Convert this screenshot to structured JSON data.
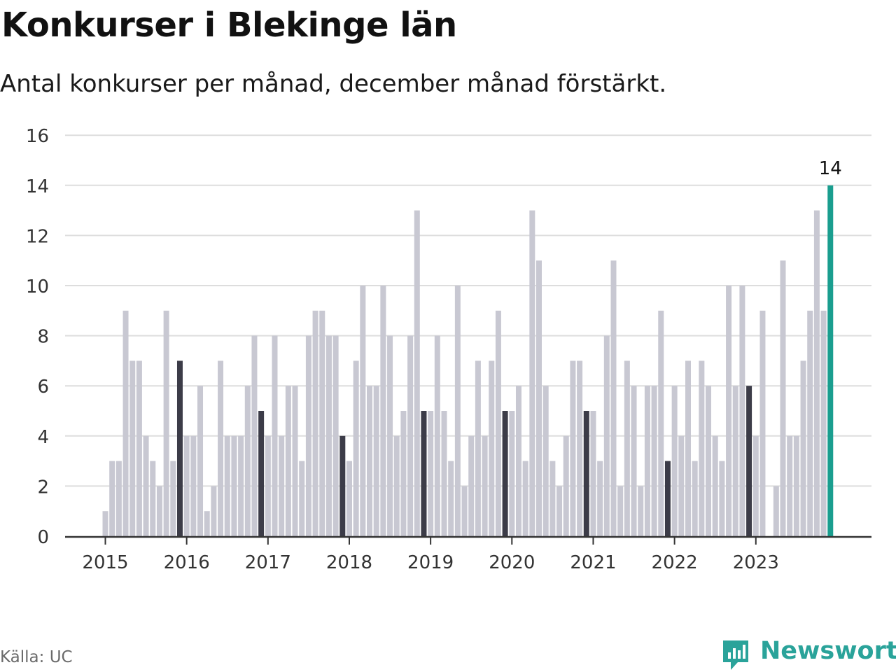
{
  "title": "Konkurser i Blekinge län",
  "subtitle": "Antal konkurser per månad, december månad förstärkt.",
  "source": "Källa: UC",
  "brand": "Newsworthy",
  "colors": {
    "bar": "#c8c8d2",
    "december": "#3c3c48",
    "latest": "#1a9e8f",
    "grid": "#dddddd",
    "axis": "#333333",
    "brand": "#2aa39a"
  },
  "chart_data": {
    "type": "bar",
    "title": "Konkurser i Blekinge län",
    "subtitle": "Antal konkurser per månad, december månad förstärkt.",
    "xlabel": "",
    "ylabel": "",
    "ylim": [
      0,
      16
    ],
    "yticks": [
      0,
      2,
      4,
      6,
      8,
      10,
      12,
      14,
      16
    ],
    "year_ticks": [
      "2015",
      "2016",
      "2017",
      "2018",
      "2019",
      "2020",
      "2021",
      "2022",
      "2023"
    ],
    "start_year": 2015,
    "values": [
      1,
      3,
      3,
      9,
      7,
      7,
      4,
      3,
      2,
      9,
      3,
      7,
      4,
      4,
      6,
      1,
      2,
      7,
      4,
      4,
      4,
      6,
      8,
      5,
      4,
      8,
      4,
      6,
      6,
      3,
      8,
      9,
      9,
      8,
      8,
      4,
      3,
      7,
      10,
      6,
      6,
      10,
      8,
      4,
      5,
      8,
      13,
      5,
      5,
      8,
      5,
      3,
      10,
      2,
      4,
      7,
      4,
      7,
      9,
      5,
      5,
      6,
      3,
      13,
      11,
      6,
      3,
      2,
      4,
      7,
      7,
      5,
      5,
      3,
      8,
      11,
      2,
      7,
      6,
      2,
      6,
      6,
      9,
      3,
      6,
      4,
      7,
      3,
      7,
      6,
      4,
      3,
      10,
      6,
      10,
      6,
      4,
      9,
      0,
      2,
      11,
      4,
      4,
      7,
      9,
      13,
      9,
      14
    ],
    "highlight_label": "14",
    "grid": true
  }
}
